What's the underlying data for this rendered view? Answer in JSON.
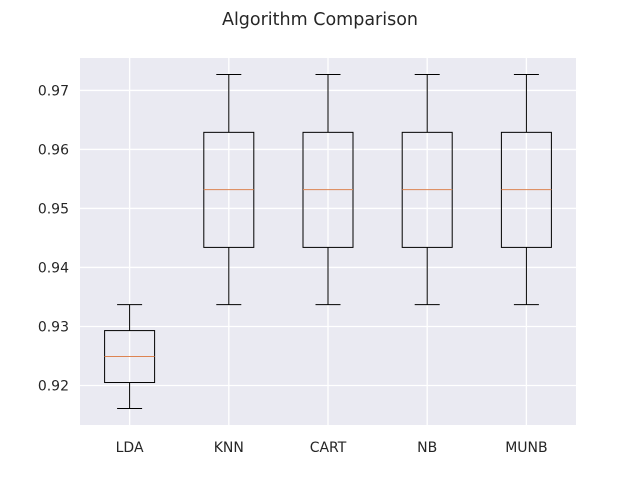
{
  "chart_data": {
    "type": "box",
    "title": "Algorithm Comparison",
    "xlabel": "",
    "ylabel": "",
    "categories": [
      "LDA",
      "KNN",
      "CART",
      "NB",
      "MUNB"
    ],
    "boxes": [
      {
        "whisker_low": 0.9161,
        "q1": 0.9205,
        "median": 0.9249,
        "q3": 0.9293,
        "whisker_high": 0.9337
      },
      {
        "whisker_low": 0.9337,
        "q1": 0.9434,
        "median": 0.9532,
        "q3": 0.9629,
        "whisker_high": 0.9727
      },
      {
        "whisker_low": 0.9337,
        "q1": 0.9434,
        "median": 0.9532,
        "q3": 0.9629,
        "whisker_high": 0.9727
      },
      {
        "whisker_low": 0.9337,
        "q1": 0.9434,
        "median": 0.9532,
        "q3": 0.9629,
        "whisker_high": 0.9727
      },
      {
        "whisker_low": 0.9337,
        "q1": 0.9434,
        "median": 0.9532,
        "q3": 0.9629,
        "whisker_high": 0.9727
      }
    ],
    "y_ticks": [
      0.92,
      0.93,
      0.94,
      0.95,
      0.96,
      0.97
    ],
    "y_tick_labels": [
      "0.92",
      "0.93",
      "0.94",
      "0.95",
      "0.96",
      "0.97"
    ],
    "ylim": [
      0.9133,
      0.9755
    ],
    "grid": true,
    "colors": {
      "background": "#eaeaf2",
      "grid": "#ffffff",
      "box": "#000000",
      "median": "#dd8452",
      "text": "#262626"
    }
  }
}
